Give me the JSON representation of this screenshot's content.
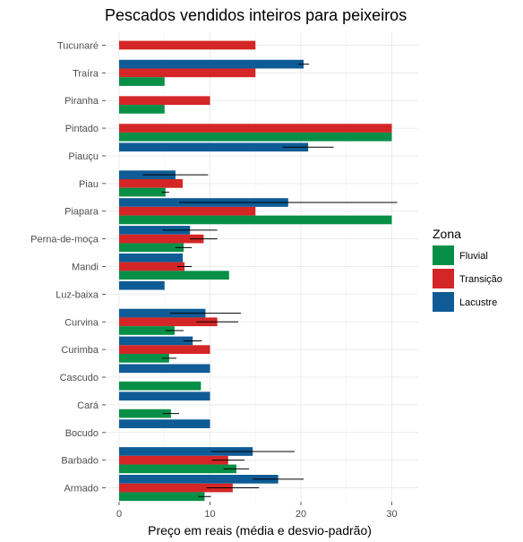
{
  "chart_data": {
    "type": "bar",
    "orientation": "horizontal",
    "title": "Pescados vendidos inteiros para peixeiros",
    "xlabel": "Preço em reais (média e desvio-padrão)",
    "ylabel": "",
    "xlim": [
      0,
      32
    ],
    "xticks": [
      0,
      10,
      20,
      30
    ],
    "xtick_labels": [
      "0",
      "10",
      "20",
      "30"
    ],
    "grid": true,
    "legend_position": "right",
    "legend_title": "Zona",
    "categories": [
      "Tucunaré",
      "Traíra",
      "Piranha",
      "Pintado",
      "Piauçu",
      "Piau",
      "Piapara",
      "Perna-de-moça",
      "Mandi",
      "Luz-baixa",
      "Curvina",
      "Curimba",
      "Cascudo",
      "Cará",
      "Bocudo",
      "Barbado",
      "Armado"
    ],
    "series": [
      {
        "name": "Lacustre",
        "color": "#0e5b96",
        "values": [
          null,
          20.3,
          null,
          null,
          20.8,
          6.2,
          18.6,
          7.8,
          7.0,
          5.0,
          9.5,
          8.1,
          10.0,
          10.0,
          10.0,
          14.7,
          17.5
        ],
        "sd": [
          null,
          0.6,
          null,
          null,
          2.8,
          3.6,
          12.0,
          3.0,
          null,
          null,
          3.9,
          1.0,
          null,
          null,
          null,
          4.6,
          2.8
        ]
      },
      {
        "name": "Transição",
        "color": "#d42626",
        "values": [
          15.0,
          15.0,
          10.0,
          30.0,
          null,
          7.0,
          15.0,
          9.3,
          7.2,
          null,
          10.8,
          10.0,
          null,
          null,
          null,
          12.0,
          12.5
        ],
        "sd": [
          null,
          null,
          null,
          null,
          null,
          null,
          null,
          1.5,
          0.8,
          null,
          2.3,
          null,
          null,
          null,
          null,
          1.8,
          2.9
        ]
      },
      {
        "name": "Fluvial",
        "color": "#078f47",
        "values": [
          null,
          5.0,
          5.0,
          30.0,
          null,
          5.1,
          30.0,
          7.1,
          12.1,
          null,
          6.1,
          5.5,
          9.0,
          5.7,
          null,
          12.9,
          9.4
        ],
        "sd": [
          null,
          null,
          null,
          null,
          null,
          0.4,
          null,
          0.9,
          null,
          null,
          1.0,
          0.8,
          null,
          0.9,
          null,
          1.4,
          0.7
        ]
      }
    ],
    "legend_order": [
      "Fluvial",
      "Transição",
      "Lacustre"
    ]
  }
}
